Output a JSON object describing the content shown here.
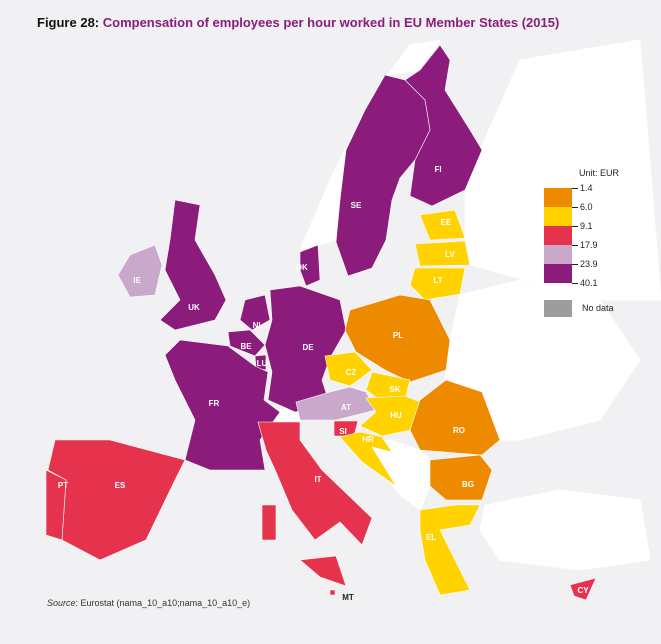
{
  "title": {
    "prefix": "Figure 28:",
    "text": "Compensation of employees per hour worked in EU Member States (2015)"
  },
  "legend": {
    "unit": "Unit: EUR",
    "breaks": [
      "1.4",
      "6.0",
      "9.1",
      "17.9",
      "23.9",
      "40.1"
    ],
    "colors": [
      "#ee8a00",
      "#ffd200",
      "#e5334e",
      "#c9a8cc",
      "#8b1c7c"
    ],
    "no_data_label": "No data",
    "no_data_color": "#9d9d9d"
  },
  "countries": {
    "FI": {
      "label": "FI",
      "class": 4
    },
    "SE": {
      "label": "SE",
      "class": 4
    },
    "EE": {
      "label": "EE",
      "class": 1
    },
    "LV": {
      "label": "LV",
      "class": 1
    },
    "LT": {
      "label": "LT",
      "class": 1
    },
    "IE": {
      "label": "IE",
      "class": 3
    },
    "UK": {
      "label": "UK",
      "class": 4
    },
    "DK": {
      "label": "DK",
      "class": 4
    },
    "NL": {
      "label": "NL",
      "class": 4
    },
    "BE": {
      "label": "BE",
      "class": 4
    },
    "LU": {
      "label": "LU",
      "class": 4
    },
    "DE": {
      "label": "DE",
      "class": 4
    },
    "PL": {
      "label": "PL",
      "class": 0
    },
    "CZ": {
      "label": "CZ",
      "class": 1
    },
    "SK": {
      "label": "SK",
      "class": 1
    },
    "AT": {
      "label": "AT",
      "class": 3
    },
    "HU": {
      "label": "HU",
      "class": 1
    },
    "SI": {
      "label": "SI",
      "class": 2
    },
    "HR": {
      "label": "HR",
      "class": 1
    },
    "RO": {
      "label": "RO",
      "class": 0
    },
    "BG": {
      "label": "BG",
      "class": 0
    },
    "FR": {
      "label": "FR",
      "class": 4
    },
    "IT": {
      "label": "IT",
      "class": 2
    },
    "ES": {
      "label": "ES",
      "class": 2
    },
    "PT": {
      "label": "PT",
      "class": 2
    },
    "EL": {
      "label": "EL",
      "class": 1
    },
    "MT": {
      "label": "MT",
      "class": 2
    },
    "CY": {
      "label": "CY",
      "class": 2
    }
  },
  "source": {
    "label": "Source",
    "text": ": Eurostat (nama_10_a10;nama_10_a10_e)"
  }
}
